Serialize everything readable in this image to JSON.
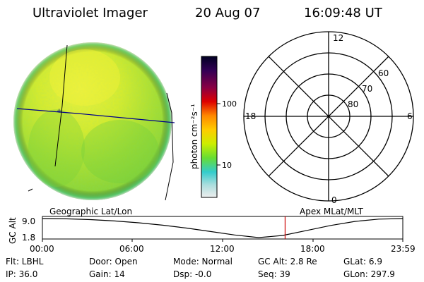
{
  "header": {
    "title": "Ultraviolet Imager",
    "date": "20 Aug 07",
    "time": "16:09:48 UT"
  },
  "colorbar": {
    "label": "photon cm⁻²s⁻¹",
    "ticks": [
      "100",
      "10"
    ],
    "scale": "log",
    "colors": [
      "#000033",
      "#330066",
      "#880044",
      "#dd0000",
      "#ff8800",
      "#ffcc00",
      "#ccee00",
      "#66dd33",
      "#33cccc",
      "#aadddd",
      "#eeeeee"
    ]
  },
  "polar": {
    "hour_labels": [
      "12",
      "18",
      "6",
      "0"
    ],
    "lat_labels": [
      "60",
      "70",
      "80"
    ]
  },
  "timeline": {
    "left_title": "Geographic Lat/Lon",
    "right_title": "Apex MLat/MLT",
    "axis_label": "GC Alt",
    "y_ticks": [
      "9.0",
      "1.8"
    ],
    "x_ticks": [
      "00:00",
      "06:00",
      "12:00",
      "18:00",
      "23:59"
    ],
    "current_time_hours": 16.163,
    "orbit_alt_samples": [
      9.0,
      8.9,
      8.6,
      8.1,
      7.4,
      6.5,
      5.4,
      4.1,
      2.8,
      1.8,
      2.6,
      4.5,
      6.4,
      7.9,
      8.8,
      9.0
    ]
  },
  "info": {
    "flt": "Flt: LBHL",
    "ip": "IP: 36.0",
    "door": "Door: Open",
    "gain": "Gain: 14",
    "mode": "Mode: Normal",
    "dsp": "Dsp:   -0.0",
    "gcalt": "GC Alt: 2.8 Re",
    "seq": "Seq: 39",
    "glat": "GLat:     6.9",
    "glon": "GLon: 297.9"
  }
}
